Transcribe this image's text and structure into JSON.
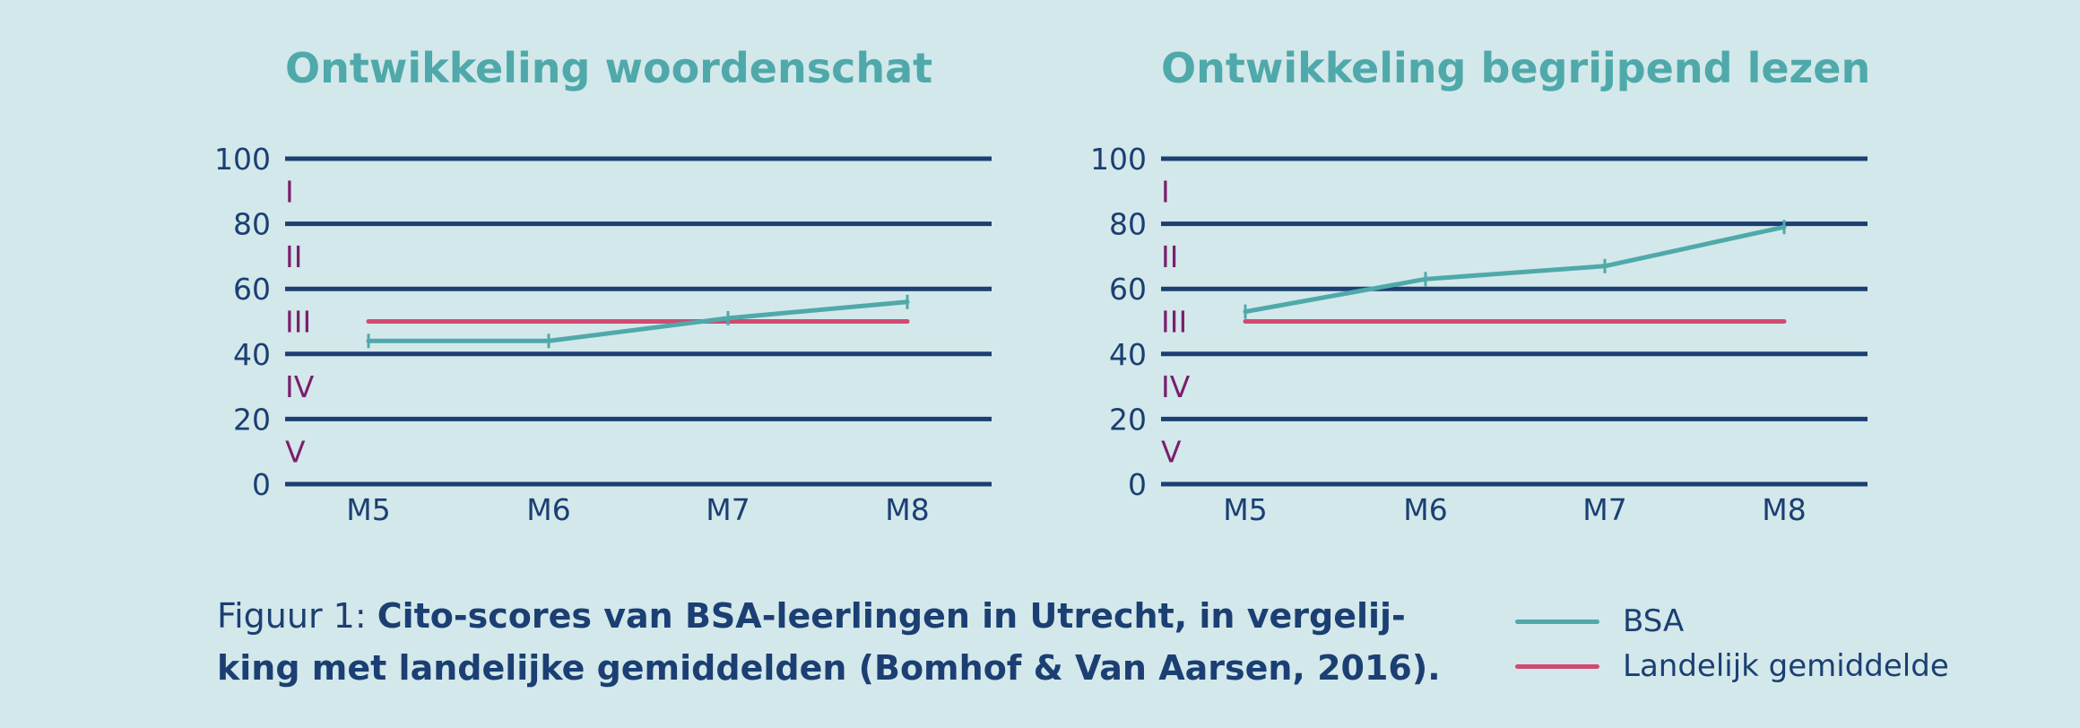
{
  "colors": {
    "background": "#d3e8ea",
    "gridline": "#1b3f73",
    "axis_text": "#1b3f73",
    "band_text": "#7b1f6e",
    "title": "#4fa9aa",
    "bsa": "#4fa9aa",
    "landelijk": "#d04a72"
  },
  "caption": {
    "prefix": "Figuur 1: ",
    "bold": "Cito-scores van BSA-leerlingen in Utrecht, in vergelij-king met landelijke gemiddelden (Bomhof & Van Aarsen, 2016)."
  },
  "legend": {
    "items": [
      {
        "label": "BSA",
        "color": "#4fa9aa"
      },
      {
        "label": "Landelijk gemiddelde",
        "color": "#d04a72"
      }
    ]
  },
  "chart_data": [
    {
      "type": "line",
      "title": "Ontwikkeling woordenschat",
      "categories": [
        "M5",
        "M6",
        "M7",
        "M8"
      ],
      "ylim": [
        0,
        100
      ],
      "yticks": [
        0,
        20,
        40,
        60,
        80,
        100
      ],
      "bands": [
        "I",
        "II",
        "III",
        "IV",
        "V"
      ],
      "grid": true,
      "series": [
        {
          "name": "BSA",
          "values": [
            44,
            44,
            51,
            56
          ]
        },
        {
          "name": "Landelijk gemiddelde",
          "values": [
            50,
            50,
            50,
            50
          ]
        }
      ]
    },
    {
      "type": "line",
      "title": "Ontwikkeling begrijpend lezen",
      "categories": [
        "M5",
        "M6",
        "M7",
        "M8"
      ],
      "ylim": [
        0,
        100
      ],
      "yticks": [
        0,
        20,
        40,
        60,
        80,
        100
      ],
      "bands": [
        "I",
        "II",
        "III",
        "IV",
        "V"
      ],
      "grid": true,
      "series": [
        {
          "name": "BSA",
          "values": [
            53,
            63,
            67,
            79
          ]
        },
        {
          "name": "Landelijk gemiddelde",
          "values": [
            50,
            50,
            50,
            50
          ]
        }
      ]
    }
  ]
}
